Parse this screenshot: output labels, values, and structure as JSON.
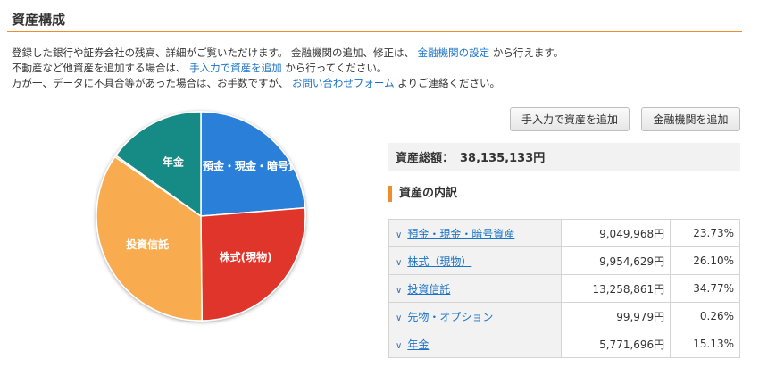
{
  "page": {
    "title": "資産構成"
  },
  "intro": {
    "line1_a": "登録した銀行や証券会社の残高、詳細がご覧いただけます。 金融機関の追加、修正は、",
    "line1_link": "金融機関の設定",
    "line1_b": "から行えます。",
    "line2_a": "不動産など他資産を追加する場合は、",
    "line2_link": "手入力で資産を追加",
    "line2_b": "から行ってください。",
    "line3_a": "万が一、データに不具合等があった場合は、お手数ですが、",
    "line3_link": "お問い合わせフォーム",
    "line3_b": "よりご連絡ください。"
  },
  "buttons": {
    "manual_add": "手入力で資産を追加",
    "institution_add": "金融機関を追加"
  },
  "total": {
    "label": "資産総額：",
    "value": "38,135,133円"
  },
  "breakdown": {
    "heading": "資産の内訳",
    "rows": [
      {
        "name": "預金・現金・暗号資産",
        "amount": "9,049,968円",
        "percent": "23.73%"
      },
      {
        "name": "株式（現物）",
        "amount": "9,954,629円",
        "percent": "26.10%"
      },
      {
        "name": "投資信託",
        "amount": "13,258,861円",
        "percent": "34.77%"
      },
      {
        "name": "先物・オプション",
        "amount": "99,979円",
        "percent": "0.26%"
      },
      {
        "name": "年金",
        "amount": "5,771,696円",
        "percent": "15.13%"
      }
    ]
  },
  "chart_data": {
    "type": "pie",
    "categories": [
      "預金・現金・暗号資産",
      "株式(現物)",
      "投資信託",
      "先物・オプション",
      "年金"
    ],
    "values": [
      23.73,
      26.1,
      34.77,
      0.26,
      15.13
    ],
    "slice_labels": [
      "預金・現金・暗号資",
      "株式(現物)",
      "投資信託",
      "",
      "年金"
    ],
    "colors": [
      "#2a80d8",
      "#e0352a",
      "#f9ac4f",
      "#8a8a8a",
      "#138a85"
    ],
    "start": "top, clockwise"
  },
  "icons": {
    "chevron": "chevron-down-icon"
  }
}
